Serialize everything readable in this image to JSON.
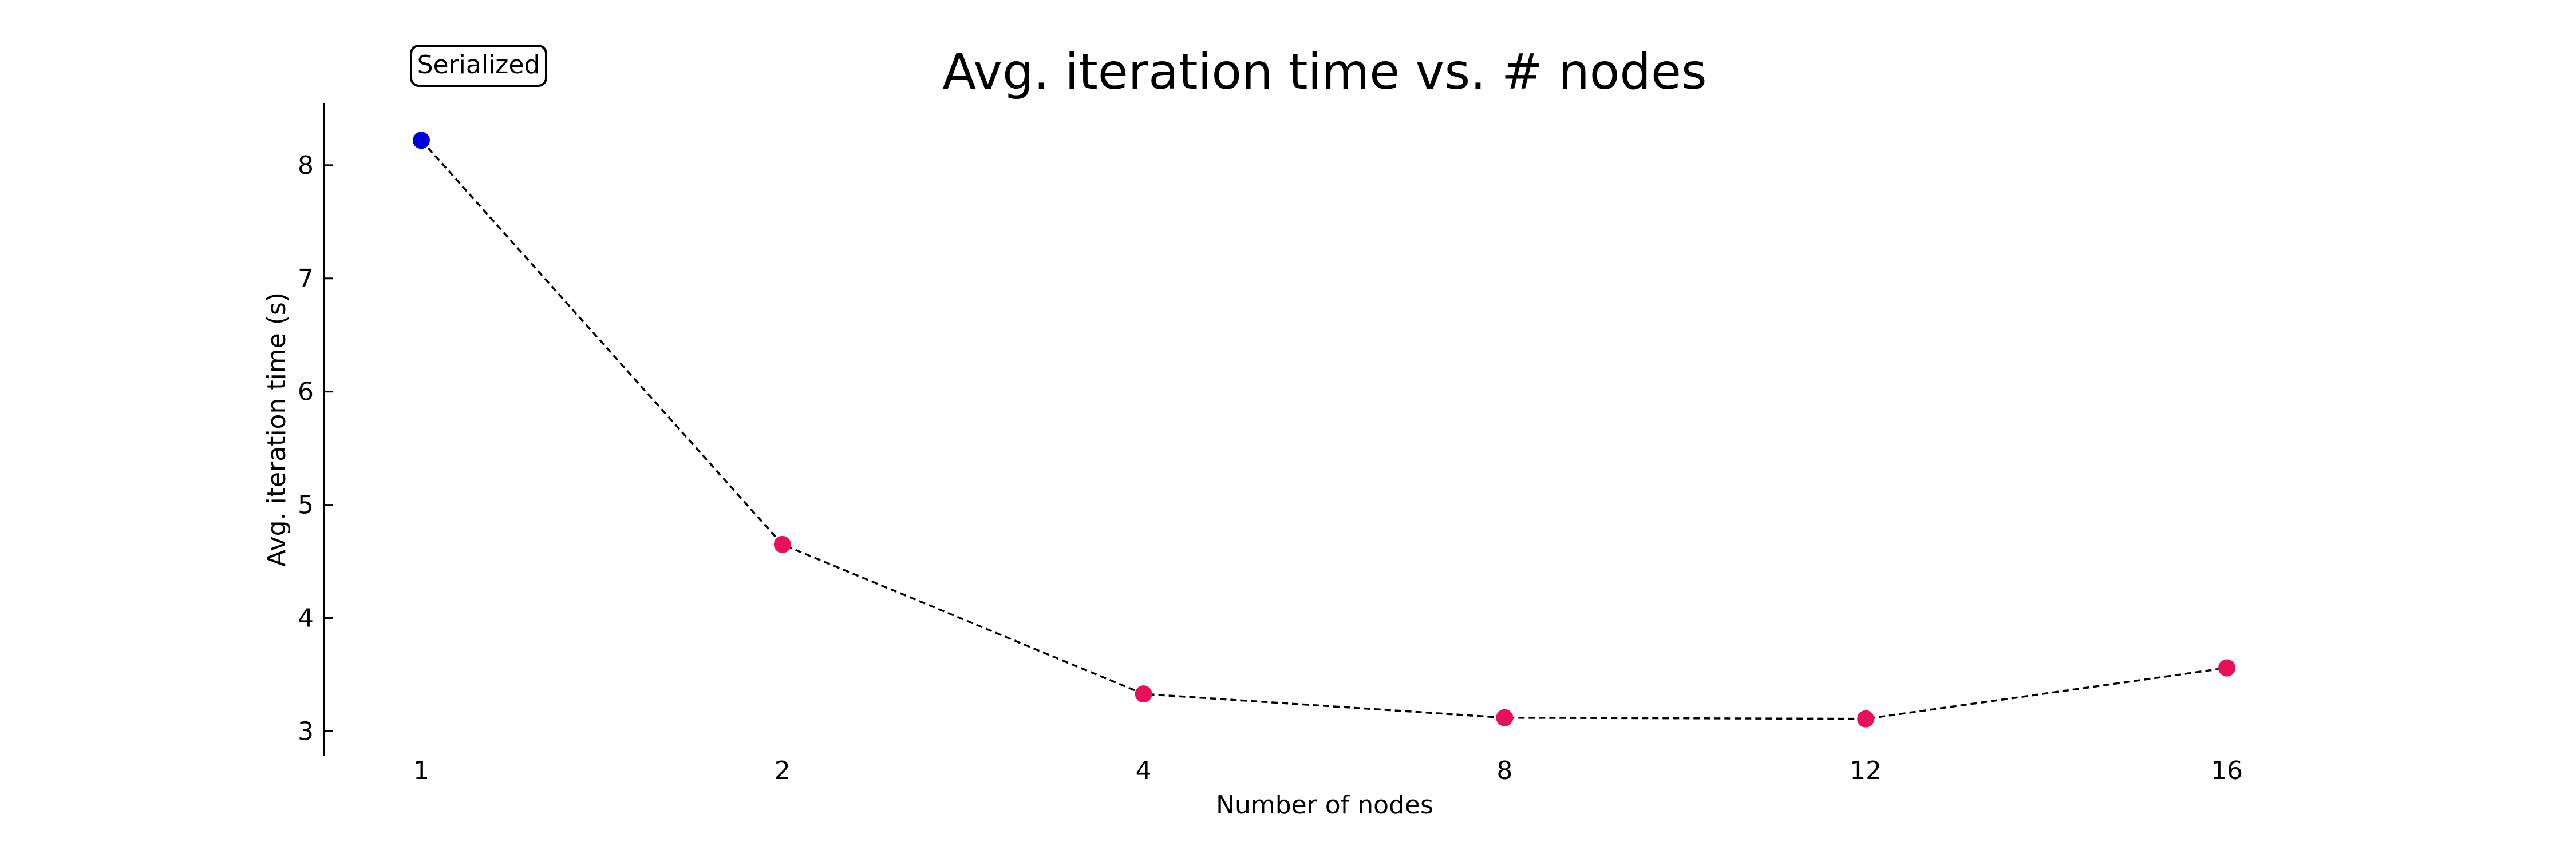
{
  "chart_data": {
    "type": "line",
    "title": "Avg. iteration time vs. # nodes",
    "xlabel": "Number of nodes",
    "ylabel": "Avg. iteration time (s)",
    "categories": [
      "1",
      "2",
      "4",
      "8",
      "12",
      "16"
    ],
    "series": [
      {
        "values": [
          8.22,
          4.65,
          3.33,
          3.12,
          3.11,
          3.56
        ],
        "line_style": "dashed",
        "line_color": "#000000",
        "point_colors": [
          "#0000dd",
          "#e8105a",
          "#e8105a",
          "#e8105a",
          "#e8105a",
          "#e8105a"
        ]
      }
    ],
    "ylim": [
      2.78,
      8.55
    ],
    "yticks": [
      3,
      4,
      5,
      6,
      7,
      8
    ],
    "grid": false,
    "annotation": {
      "text": "Serialized",
      "attached_to": "1",
      "boxed": true
    }
  }
}
